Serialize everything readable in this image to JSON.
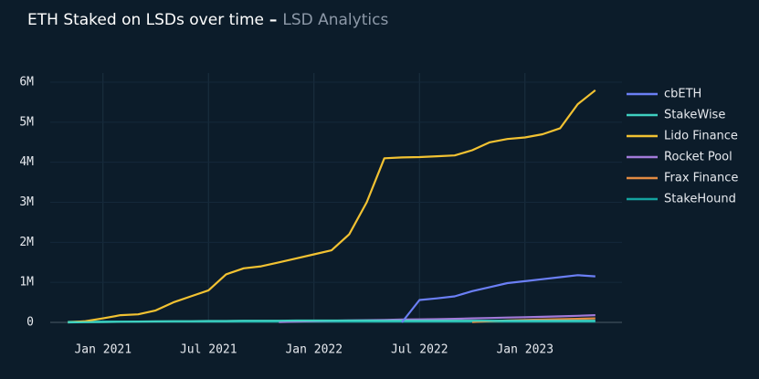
{
  "chart_data": {
    "type": "line",
    "title": "ETH Staked on LSDs over time",
    "subtitle": "LSD Analytics",
    "x": [
      "2020-11",
      "2020-12",
      "2021-01",
      "2021-02",
      "2021-03",
      "2021-04",
      "2021-05",
      "2021-06",
      "2021-07",
      "2021-08",
      "2021-09",
      "2021-10",
      "2021-11",
      "2021-12",
      "2022-01",
      "2022-02",
      "2022-03",
      "2022-04",
      "2022-05",
      "2022-06",
      "2022-07",
      "2022-08",
      "2022-09",
      "2022-10",
      "2022-11",
      "2022-12",
      "2023-01",
      "2023-02",
      "2023-03",
      "2023-04",
      "2023-05"
    ],
    "xlim": [
      "2020-10",
      "2023-06"
    ],
    "xticks": [
      {
        "value": "2021-01",
        "label": "Jan 2021"
      },
      {
        "value": "2021-07",
        "label": "Jul 2021"
      },
      {
        "value": "2022-01",
        "label": "Jan 2022"
      },
      {
        "value": "2022-07",
        "label": "Jul 2022"
      },
      {
        "value": "2023-01",
        "label": "Jan 2023"
      }
    ],
    "ylim": [
      0,
      6000000
    ],
    "yticks": [
      0,
      {
        "value": 1000000,
        "label": "1M"
      },
      {
        "value": 2000000,
        "label": "2M"
      },
      {
        "value": 3000000,
        "label": "3M"
      },
      {
        "value": 4000000,
        "label": "4M"
      },
      {
        "value": 5000000,
        "label": "5M"
      },
      {
        "value": 6000000,
        "label": "6M"
      }
    ],
    "grid": true,
    "legend": "right",
    "series": [
      {
        "name": "cbETH",
        "color": "#6b7ff5",
        "values": [
          null,
          null,
          null,
          null,
          null,
          null,
          null,
          null,
          null,
          null,
          null,
          null,
          null,
          null,
          null,
          null,
          null,
          null,
          null,
          0,
          560000,
          600000,
          650000,
          780000,
          880000,
          980000,
          1030000,
          1080000,
          1130000,
          1180000,
          1150000
        ]
      },
      {
        "name": "StakeWise",
        "color": "#3fd0c0",
        "values": [
          0,
          5000,
          10000,
          15000,
          20000,
          25000,
          30000,
          30000,
          35000,
          35000,
          40000,
          40000,
          40000,
          45000,
          45000,
          45000,
          45000,
          45000,
          40000,
          40000,
          40000,
          40000,
          40000,
          40000,
          40000,
          40000,
          40000,
          40000,
          40000,
          40000,
          40000
        ]
      },
      {
        "name": "Lido Finance",
        "color": "#f2c232",
        "values": [
          0,
          30000,
          100000,
          180000,
          200000,
          300000,
          500000,
          650000,
          800000,
          1200000,
          1350000,
          1400000,
          1500000,
          1600000,
          1700000,
          1800000,
          2200000,
          3000000,
          4100000,
          4120000,
          4130000,
          4150000,
          4170000,
          4300000,
          4500000,
          4580000,
          4620000,
          4700000,
          4850000,
          5450000,
          5800000
        ]
      },
      {
        "name": "Rocket Pool",
        "color": "#a27ad9",
        "values": [
          null,
          null,
          null,
          null,
          null,
          null,
          null,
          null,
          null,
          null,
          null,
          null,
          10000,
          20000,
          30000,
          40000,
          50000,
          55000,
          60000,
          70000,
          75000,
          80000,
          90000,
          100000,
          110000,
          120000,
          130000,
          140000,
          150000,
          165000,
          180000
        ]
      },
      {
        "name": "Frax Finance",
        "color": "#e28b42",
        "values": [
          null,
          null,
          null,
          null,
          null,
          null,
          null,
          null,
          null,
          null,
          null,
          null,
          null,
          null,
          null,
          null,
          null,
          null,
          null,
          null,
          null,
          null,
          null,
          10000,
          30000,
          50000,
          60000,
          70000,
          80000,
          90000,
          100000
        ]
      },
      {
        "name": "StakeHound",
        "color": "#14a3a0",
        "values": [
          15000,
          20000,
          20000,
          20000,
          20000,
          20000,
          20000,
          20000,
          20000,
          20000,
          20000,
          20000,
          20000,
          20000,
          20000,
          20000,
          20000,
          20000,
          20000,
          20000,
          20000,
          20000,
          20000,
          20000,
          20000,
          20000,
          20000,
          20000,
          20000,
          20000,
          20000
        ]
      }
    ]
  }
}
